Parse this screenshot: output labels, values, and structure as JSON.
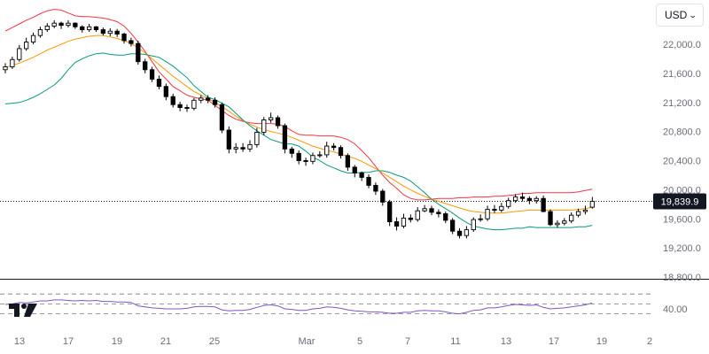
{
  "header": {
    "currency_label": "USD",
    "currency_icon": "chevron-down-icon"
  },
  "logo": {
    "name": "tradingview-logo"
  },
  "colors": {
    "up": "#000000",
    "down": "#000000",
    "upper_band": "#f23645",
    "middle_band": "#ff9800",
    "lower_band": "#089981",
    "rsi_line": "#7e57c2",
    "price_tag_bg": "#131722",
    "axis_text": "#6a6d78"
  },
  "chart_data": [
    {
      "type": "candlestick",
      "title": "",
      "overlays": [
        "bollinger_upper",
        "bollinger_middle",
        "bollinger_lower"
      ],
      "yaxis_position": "right",
      "ylim": [
        18800,
        22400
      ],
      "ytick_labels": [
        "22,000.0",
        "21,600.0",
        "21,200.0",
        "20,800.0",
        "20,400.0",
        "20,000.0",
        "19,600.0",
        "19,200.0",
        "18,800.0"
      ],
      "ytick_values": [
        22000,
        21600,
        21200,
        20800,
        20400,
        20000,
        19600,
        19200,
        18800
      ],
      "xtick_labels": [
        "13",
        "17",
        "19",
        "21",
        "25",
        "Mar",
        "5",
        "7",
        "11",
        "13",
        "17",
        "19",
        "2"
      ],
      "last_price": 19839.9,
      "last_price_label": "19,839.9",
      "grid": false,
      "close": [
        21690,
        21790,
        21940,
        22030,
        22120,
        22200,
        22250,
        22290,
        22260,
        22290,
        22240,
        22200,
        22240,
        22200,
        22150,
        22180,
        22140,
        22050,
        22010,
        21760,
        21650,
        21520,
        21420,
        21280,
        21170,
        21130,
        21120,
        21230,
        21260,
        21230,
        21170,
        20820,
        20560,
        20580,
        20560,
        20620,
        20790,
        20960,
        20990,
        20880,
        20560,
        20500,
        20400,
        20390,
        20470,
        20480,
        20600,
        20580,
        20470,
        20310,
        20230,
        20170,
        20060,
        19980,
        19830,
        19560,
        19500,
        19610,
        19590,
        19710,
        19740,
        19690,
        19670,
        19580,
        19430,
        19370,
        19450,
        19590,
        19600,
        19730,
        19720,
        19770,
        19850,
        19900,
        19880,
        19850,
        19880,
        19700,
        19520,
        19540,
        19570,
        19650,
        19700,
        19720,
        19839.9
      ],
      "open": [
        21650,
        21690,
        21790,
        21940,
        22030,
        22120,
        22200,
        22250,
        22290,
        22260,
        22290,
        22240,
        22200,
        22240,
        22200,
        22150,
        22180,
        22140,
        22050,
        22010,
        21760,
        21650,
        21520,
        21420,
        21280,
        21170,
        21130,
        21120,
        21230,
        21260,
        21230,
        21170,
        20820,
        20560,
        20580,
        20560,
        20620,
        20790,
        20960,
        20990,
        20880,
        20560,
        20500,
        20400,
        20390,
        20470,
        20480,
        20600,
        20580,
        20470,
        20310,
        20230,
        20170,
        20060,
        19980,
        19830,
        19560,
        19500,
        19610,
        19590,
        19710,
        19740,
        19690,
        19670,
        19580,
        19430,
        19370,
        19450,
        19590,
        19600,
        19730,
        19720,
        19770,
        19850,
        19900,
        19880,
        19850,
        19880,
        19700,
        19520,
        19540,
        19570,
        19650,
        19700,
        19760
      ],
      "high": [
        21740,
        21830,
        21990,
        22090,
        22160,
        22240,
        22290,
        22330,
        22310,
        22330,
        22300,
        22260,
        22280,
        22250,
        22230,
        22220,
        22210,
        22160,
        22090,
        22050,
        21800,
        21690,
        21570,
        21460,
        21320,
        21210,
        21170,
        21260,
        21300,
        21300,
        21270,
        21200,
        20870,
        20640,
        20640,
        20680,
        20850,
        21000,
        21060,
        21020,
        20910,
        20590,
        20540,
        20440,
        20510,
        20530,
        20660,
        20640,
        20610,
        20500,
        20340,
        20250,
        20210,
        20100,
        20010,
        19860,
        19620,
        19670,
        19660,
        19760,
        19790,
        19780,
        19730,
        19700,
        19610,
        19470,
        19500,
        19620,
        19660,
        19780,
        19790,
        19820,
        19890,
        19940,
        19960,
        19910,
        19910,
        19920,
        19730,
        19580,
        19610,
        19690,
        19740,
        19780,
        19900
      ],
      "low": [
        21600,
        21660,
        21760,
        21910,
        22000,
        22090,
        22170,
        22220,
        22210,
        22230,
        22210,
        22160,
        22170,
        22170,
        22120,
        22110,
        22100,
        22010,
        21970,
        21720,
        21600,
        21480,
        21380,
        21230,
        21130,
        21080,
        21070,
        21090,
        21190,
        21190,
        21130,
        20780,
        20500,
        20500,
        20520,
        20520,
        20580,
        20750,
        20920,
        20840,
        20500,
        20440,
        20350,
        20330,
        20350,
        20440,
        20440,
        20540,
        20430,
        20260,
        20170,
        20120,
        20020,
        19930,
        19780,
        19500,
        19440,
        19470,
        19550,
        19560,
        19690,
        19650,
        19620,
        19540,
        19390,
        19330,
        19330,
        19420,
        19560,
        19570,
        19680,
        19690,
        19740,
        19820,
        19840,
        19800,
        19810,
        19690,
        19500,
        19480,
        19510,
        19540,
        19620,
        19660,
        19740
      ],
      "bb_upper": [
        22180,
        22230,
        22280,
        22330,
        22370,
        22420,
        22460,
        22480,
        22470,
        22430,
        22390,
        22380,
        22380,
        22370,
        22360,
        22340,
        22310,
        22250,
        22150,
        22030,
        21900,
        21760,
        21620,
        21520,
        21420,
        21360,
        21300,
        21270,
        21250,
        21230,
        21160,
        21090,
        21020,
        20970,
        20940,
        20920,
        20910,
        20910,
        20910,
        20900,
        20870,
        20810,
        20760,
        20750,
        20750,
        20740,
        20740,
        20740,
        20720,
        20690,
        20630,
        20540,
        20440,
        20320,
        20200,
        20100,
        20020,
        19930,
        19880,
        19860,
        19860,
        19870,
        19880,
        19880,
        19880,
        19890,
        19890,
        19900,
        19900,
        19900,
        19910,
        19910,
        19920,
        19930,
        19950,
        19950,
        19960,
        19960,
        19960,
        19960,
        19960,
        19960,
        19970,
        19990,
        20010
      ],
      "bb_middle": [
        21680,
        21710,
        21740,
        21780,
        21820,
        21870,
        21920,
        21960,
        22000,
        22040,
        22070,
        22090,
        22110,
        22120,
        22120,
        22100,
        22080,
        22050,
        22010,
        21950,
        21880,
        21800,
        21720,
        21640,
        21560,
        21490,
        21420,
        21350,
        21300,
        21250,
        21200,
        21140,
        21080,
        21010,
        20950,
        20900,
        20860,
        20830,
        20800,
        20780,
        20750,
        20720,
        20680,
        20640,
        20600,
        20570,
        20540,
        20520,
        20490,
        20460,
        20430,
        20390,
        20340,
        20290,
        20230,
        20170,
        20110,
        20050,
        20000,
        19950,
        19910,
        19870,
        19840,
        19810,
        19780,
        19750,
        19720,
        19700,
        19690,
        19680,
        19680,
        19680,
        19690,
        19700,
        19710,
        19720,
        19720,
        19720,
        19720,
        19720,
        19720,
        19720,
        19730,
        19740,
        19760
      ],
      "bb_lower": [
        21180,
        21190,
        21200,
        21230,
        21270,
        21320,
        21380,
        21440,
        21530,
        21650,
        21750,
        21800,
        21840,
        21870,
        21880,
        21860,
        21850,
        21850,
        21870,
        21870,
        21860,
        21840,
        21820,
        21760,
        21700,
        21620,
        21540,
        21430,
        21350,
        21270,
        21240,
        21190,
        21140,
        21050,
        20960,
        20880,
        20810,
        20750,
        20690,
        20660,
        20630,
        20630,
        20600,
        20530,
        20450,
        20400,
        20340,
        20300,
        20260,
        20230,
        20230,
        20240,
        20240,
        20260,
        20260,
        20240,
        20200,
        20170,
        20120,
        20040,
        19960,
        19870,
        19800,
        19740,
        19680,
        19610,
        19550,
        19500,
        19480,
        19460,
        19450,
        19450,
        19460,
        19470,
        19470,
        19490,
        19480,
        19480,
        19480,
        19480,
        19480,
        19480,
        19490,
        19490,
        19510
      ]
    },
    {
      "type": "line",
      "title": "",
      "series": [
        {
          "values": [
            49,
            50,
            53,
            52,
            54,
            56,
            56,
            58,
            58,
            57,
            56,
            57,
            56,
            57,
            55,
            55,
            54,
            54,
            53,
            46,
            44,
            42,
            41,
            40,
            40,
            40,
            41,
            44,
            45,
            45,
            44,
            38,
            36,
            37,
            37,
            39,
            43,
            47,
            48,
            46,
            40,
            39,
            37,
            37,
            40,
            41,
            44,
            43,
            41,
            38,
            36,
            35,
            34,
            34,
            33,
            31,
            31,
            33,
            33,
            36,
            37,
            36,
            36,
            34,
            31,
            30,
            33,
            37,
            38,
            42,
            42,
            44,
            47,
            49,
            48,
            47,
            48,
            43,
            40,
            41,
            42,
            44,
            46,
            48,
            52
          ]
        }
      ],
      "ytick_labels": [
        "40.00"
      ],
      "ytick_values": [
        40
      ],
      "reference_levels": [
        70,
        50,
        30
      ],
      "ylim": [
        20,
        80
      ]
    }
  ]
}
